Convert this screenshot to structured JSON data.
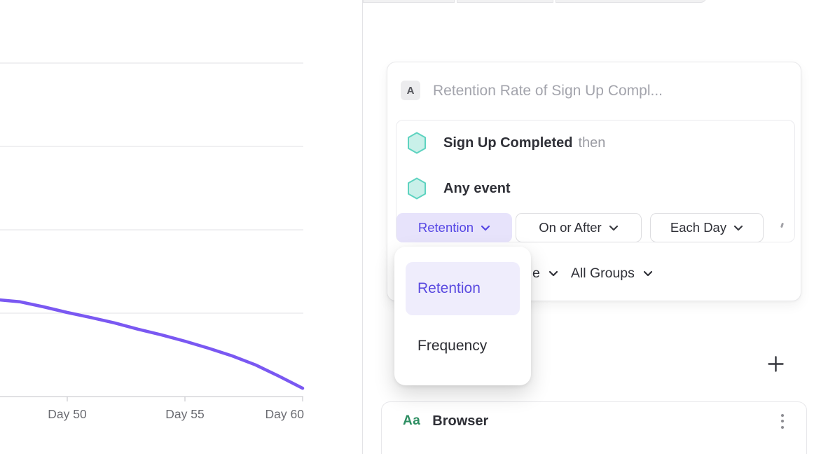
{
  "colors": {
    "accent_purple": "#5b4be0",
    "pill_background": "#e7e3fb",
    "selected_item_background": "#efedfc",
    "chart_line_purple": "#7a58f2",
    "hexagon_fill": "#c9f0e9",
    "hexagon_stroke": "#5ed3c0",
    "property_type_green": "#2d8e62",
    "gridline": "#ececee",
    "axis_line": "#d7d7da"
  },
  "chart_data": {
    "type": "line",
    "title": "",
    "xlabel": "",
    "ylabel": "",
    "x_tick_labels": [
      "Day 50",
      "Day 55",
      "Day 60"
    ],
    "x_ticks_days": [
      50,
      55,
      60
    ],
    "x_visible_range_days": [
      47.1,
      60
    ],
    "y_axis": {
      "tick_labels_visible": false,
      "gridlines_visible": 4
    },
    "y_unit": "fraction of visible plot height (y-axis labels are off-screen left)",
    "series": [
      {
        "name": "Retention",
        "color": "#7a58f2",
        "points": [
          [
            47.1,
            0.29
          ],
          [
            48,
            0.284
          ],
          [
            49,
            0.269
          ],
          [
            50,
            0.252
          ],
          [
            51,
            0.237
          ],
          [
            52,
            0.221
          ],
          [
            53,
            0.202
          ],
          [
            54,
            0.185
          ],
          [
            55,
            0.166
          ],
          [
            56,
            0.145
          ],
          [
            57,
            0.122
          ],
          [
            58,
            0.095
          ],
          [
            59,
            0.061
          ],
          [
            60,
            0.025
          ]
        ]
      }
    ],
    "legend": "none"
  },
  "query_card": {
    "badge": "A",
    "title_placeholder": "Retention Rate of Sign Up Compl...",
    "events": [
      {
        "name": "Sign Up Completed",
        "suffix": "then"
      },
      {
        "name": "Any event",
        "suffix": ""
      }
    ],
    "controls": [
      {
        "label": "Retention",
        "selected": true
      },
      {
        "label": "On or After",
        "selected": false
      },
      {
        "label": "Each Day",
        "selected": false
      }
    ],
    "groups_row": {
      "clipped_fragment": "e",
      "all_groups_label": "All Groups"
    }
  },
  "dropdown_menu": {
    "items": [
      {
        "label": "Retention",
        "selected": true
      },
      {
        "label": "Frequency",
        "selected": false
      }
    ]
  },
  "add_button": {
    "icon": "plus-icon"
  },
  "breakdown_card": {
    "type_tag": "Aa",
    "label": "Browser",
    "menu_icon": "kebab-menu-icon"
  }
}
